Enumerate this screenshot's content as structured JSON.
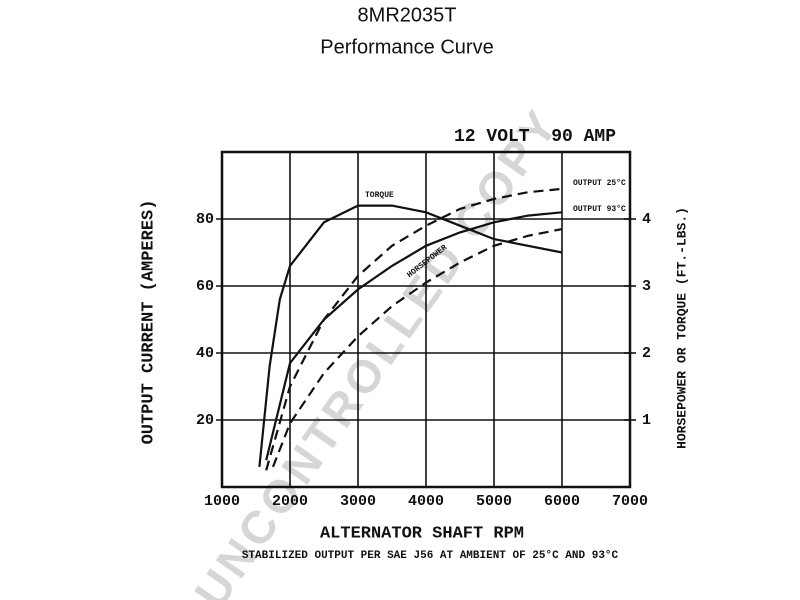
{
  "chart_data": {
    "type": "line",
    "title": "8MR2035T",
    "subtitle": "Performance Curve",
    "annotation": "12 VOLT  90 AMP",
    "footnote": "STABILIZED OUTPUT PER SAE J56 AT AMBIENT OF 25°C AND 93°C",
    "watermark": "UNCONTROLLED COPY",
    "xlabel": "ALTERNATOR SHAFT RPM",
    "ylabel": "OUTPUT CURRENT (AMPERES)",
    "y2label": "HORSEPOWER OR TORQUE (FT.-LBS.)",
    "xlim": [
      1000,
      7000
    ],
    "xticks": [
      1000,
      2000,
      3000,
      4000,
      5000,
      6000,
      7000
    ],
    "ylim": [
      0,
      100
    ],
    "yticks": [
      20,
      40,
      60,
      80
    ],
    "y2lim": [
      0,
      5
    ],
    "y2ticks": [
      1,
      2,
      3,
      4
    ],
    "grid": true,
    "series": [
      {
        "name": "OUTPUT 25°C",
        "color": "#111111",
        "dashed": true,
        "axis": "y",
        "x": [
          1650,
          2000,
          2500,
          3000,
          3500,
          4000,
          4500,
          5000,
          5500,
          6000
        ],
        "values": [
          5,
          30,
          50,
          63,
          72,
          78,
          83,
          86,
          88,
          89
        ]
      },
      {
        "name": "OUTPUT 93°C",
        "color": "#111111",
        "dashed": false,
        "axis": "y",
        "x": [
          1650,
          2000,
          2500,
          3000,
          3500,
          4000,
          4500,
          5000,
          5500,
          6000
        ],
        "values": [
          8,
          37,
          50,
          59,
          66,
          72,
          76,
          79,
          81,
          82
        ]
      },
      {
        "name": "TORQUE",
        "color": "#111111",
        "dashed": false,
        "axis": "y2",
        "x": [
          1550,
          1700,
          1850,
          2000,
          2500,
          3000,
          3500,
          4000,
          4500,
          5000,
          5500,
          6000
        ],
        "values": [
          0.3,
          1.8,
          2.8,
          3.3,
          3.95,
          4.2,
          4.2,
          4.1,
          3.9,
          3.7,
          3.6,
          3.5
        ]
      },
      {
        "name": "HORSEPOWER",
        "color": "#111111",
        "dashed": true,
        "axis": "y2",
        "x": [
          1750,
          2000,
          2500,
          3000,
          3500,
          4000,
          4500,
          5000,
          5500,
          6000
        ],
        "values": [
          0.3,
          0.95,
          1.7,
          2.25,
          2.7,
          3.05,
          3.35,
          3.6,
          3.75,
          3.85
        ]
      }
    ]
  }
}
